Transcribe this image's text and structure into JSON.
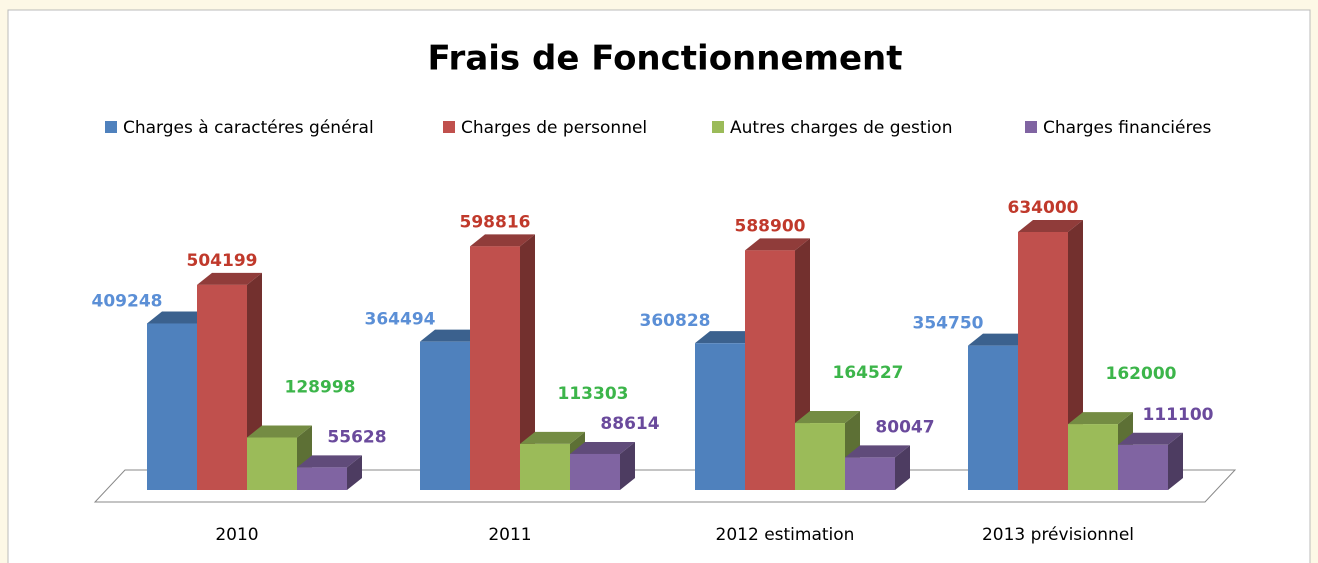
{
  "chart_data": {
    "type": "bar3d",
    "title": "Frais de Fonctionnement",
    "categories": [
      "2010",
      "2011",
      "2012 estimation",
      "2013 prévisionnel"
    ],
    "series": [
      {
        "name": "Charges à caractéres général",
        "color": "#4f81bd",
        "label_color": "#5b8fd6",
        "values": [
          409248,
          364494,
          360828,
          354750
        ]
      },
      {
        "name": "Charges de personnel",
        "color": "#c0504d",
        "label_color": "#c0392b",
        "values": [
          504199,
          598816,
          588900,
          634000
        ]
      },
      {
        "name": "Autres charges de gestion",
        "color": "#9bbb59",
        "label_color": "#3cb54a",
        "values": [
          128998,
          113303,
          164527,
          162000
        ]
      },
      {
        "name": "Charges financiéres",
        "color": "#8064a2",
        "label_color": "#6a4a9c",
        "values": [
          55628,
          88614,
          80047,
          111100
        ]
      }
    ],
    "legend": "top"
  }
}
